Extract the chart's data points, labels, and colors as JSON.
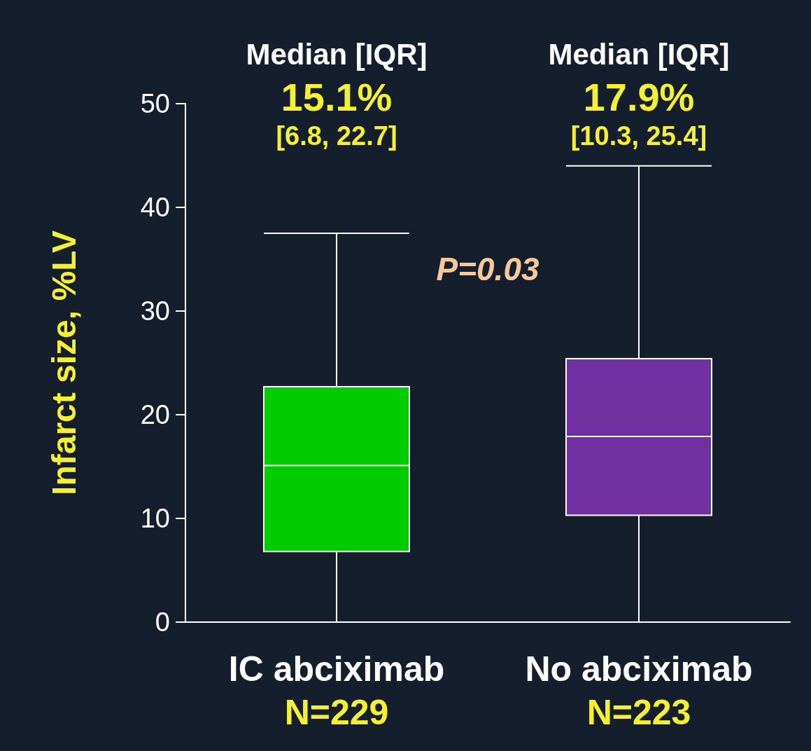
{
  "chart_data": {
    "type": "box",
    "ylabel": "Infarct size, %LV",
    "categories": [
      "IC abciximab\nN=229",
      "No abciximab\nN=223"
    ],
    "boxes": [
      {
        "low": 0,
        "q1": 6.8,
        "median": 15.1,
        "q3": 22.7,
        "high": 37.5
      },
      {
        "low": 0,
        "q1": 10.3,
        "median": 17.9,
        "q3": 25.4,
        "high": 44
      }
    ],
    "colors": [
      "#00cc00",
      "#7030a0"
    ],
    "ylim": [
      0,
      50
    ],
    "yticks": [
      0,
      10,
      20,
      30,
      40,
      50
    ],
    "annotations": [
      "Median [IQR]\n15.1%\n[6.8, 22.7]",
      "Median [IQR]\n17.9%\n[10.3, 25.4]",
      "P=0.03"
    ]
  }
}
